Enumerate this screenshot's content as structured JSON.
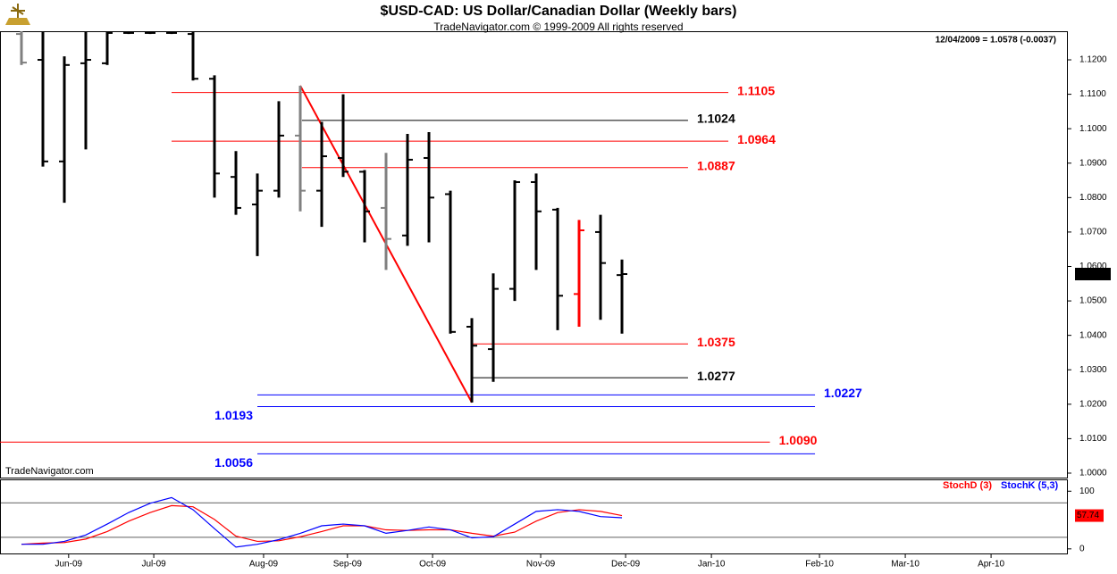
{
  "chart_data": [
    {
      "type": "ohlc",
      "title": "$USD-CAD:  US Dollar/Canadian Dollar  (Weekly bars)",
      "subtitle": "TradeNavigator.com © 1999-2009 All rights reserved",
      "note": "12/04/2009 = 1.0578 (-0.0037)",
      "watermark": "TradeNavigator.com",
      "x": [
        0,
        1,
        2,
        3,
        4,
        5,
        6,
        7,
        8,
        9,
        10,
        11,
        12,
        13,
        14,
        15,
        16,
        17,
        18,
        19,
        20,
        21,
        22,
        23,
        24,
        25,
        26,
        27,
        28
      ],
      "open": [
        1.1275,
        1.12,
        1.0905,
        1.119,
        1.119,
        1.1278,
        1.1278,
        1.1278,
        1.1275,
        1.1145,
        1.086,
        1.078,
        1.082,
        1.098,
        1.082,
        1.0915,
        1.0875,
        1.077,
        1.069,
        1.0915,
        1.081,
        1.0425,
        1.036,
        1.0535,
        1.0845,
        1.0765,
        1.052,
        1.07,
        1.0575
      ],
      "high": [
        1.129,
        1.129,
        1.121,
        1.129,
        1.129,
        1.129,
        1.129,
        1.129,
        1.129,
        1.1155,
        1.0935,
        1.087,
        1.108,
        1.1125,
        1.102,
        1.11,
        1.088,
        1.093,
        1.0985,
        1.099,
        1.082,
        1.045,
        1.058,
        1.085,
        1.087,
        1.077,
        1.0735,
        1.075,
        1.062
      ],
      "low": [
        1.1185,
        1.089,
        1.0785,
        1.094,
        1.1185,
        1.1275,
        1.1275,
        1.1275,
        1.114,
        1.08,
        1.075,
        1.063,
        1.08,
        1.076,
        1.0715,
        1.086,
        1.067,
        1.059,
        1.066,
        1.067,
        1.0405,
        1.0205,
        1.0265,
        1.05,
        1.059,
        1.0415,
        1.0425,
        1.0445,
        1.0405
      ],
      "close": [
        1.1192,
        1.0905,
        1.1185,
        1.12,
        1.1278,
        1.1278,
        1.1278,
        1.1278,
        1.1145,
        1.087,
        1.077,
        1.082,
        1.098,
        1.082,
        1.092,
        1.0875,
        1.076,
        1.068,
        1.091,
        1.08,
        1.041,
        1.037,
        1.0535,
        1.0845,
        1.076,
        1.0515,
        1.0705,
        1.061,
        1.0578
      ],
      "color": "#000000",
      "bar_colors": [
        "#808080",
        "#000000",
        "#000000",
        "#000000",
        "#000000",
        "#000000",
        "#000000",
        "#000000",
        "#000000",
        "#000000",
        "#000000",
        "#000000",
        "#000000",
        "#808080",
        "#000000",
        "#000000",
        "#000000",
        "#808080",
        "#000000",
        "#000000",
        "#000000",
        "#000000",
        "#000000",
        "#000000",
        "#000000",
        "#000000",
        "#ff0000",
        "#000000",
        "#000000"
      ],
      "xlim": [
        -1,
        48.79
      ],
      "xticks": [
        {
          "value": 2.2,
          "label": "Jun-09"
        },
        {
          "value": 6.17,
          "label": "Jul-09"
        },
        {
          "value": 11.29,
          "label": "Aug-09"
        },
        {
          "value": 15.2,
          "label": "Sep-09"
        },
        {
          "value": 19.17,
          "label": "Oct-09"
        },
        {
          "value": 24.21,
          "label": "Nov-09"
        },
        {
          "value": 28.17,
          "label": "Dec-09"
        },
        {
          "value": 32.17,
          "label": "Jan-10"
        },
        {
          "value": 37.21,
          "label": "Feb-10"
        },
        {
          "value": 41.21,
          "label": "Mar-10"
        },
        {
          "value": 45.21,
          "label": "Apr-10"
        }
      ],
      "ylim": [
        0.9987,
        1.1283
      ],
      "yticks": [
        {
          "value": 1.0,
          "label": "1.0000"
        },
        {
          "value": 1.01,
          "label": "1.0100"
        },
        {
          "value": 1.02,
          "label": "1.0200"
        },
        {
          "value": 1.03,
          "label": "1.0300"
        },
        {
          "value": 1.04,
          "label": "1.0400"
        },
        {
          "value": 1.05,
          "label": "1.0500"
        },
        {
          "value": 1.06,
          "label": "1.0600"
        },
        {
          "value": 1.07,
          "label": "1.0700"
        },
        {
          "value": 1.08,
          "label": "1.0800"
        },
        {
          "value": 1.09,
          "label": "1.0900"
        },
        {
          "value": 1.1,
          "label": "1.1000"
        },
        {
          "value": 1.11,
          "label": "1.1100"
        },
        {
          "value": 1.12,
          "label": "1.1200"
        }
      ],
      "levels": [
        {
          "value": 1.1105,
          "label": "1.1105",
          "color": "#ff0000",
          "from": 7,
          "to": 32.96
        },
        {
          "value": 1.1024,
          "label": "1.1024",
          "color": "#000000",
          "from": 13.08,
          "to": 31.08
        },
        {
          "value": 1.0964,
          "label": "1.0964",
          "color": "#ff0000",
          "from": 7,
          "to": 32.96
        },
        {
          "value": 1.0887,
          "label": "1.0887",
          "color": "#ff0000",
          "from": 13.08,
          "to": 31.08
        },
        {
          "value": 1.0375,
          "label": "1.0375",
          "color": "#ff0000",
          "from": 21,
          "to": 31.08
        },
        {
          "value": 1.0277,
          "label": "1.0277",
          "color": "#000000",
          "from": 21,
          "to": 31.08
        },
        {
          "value": 1.0227,
          "label": "1.0227",
          "color": "#0000ff",
          "from": 11,
          "to": 37
        },
        {
          "value": 1.0193,
          "label": "1.0193",
          "color": "#0000ff",
          "from": 11,
          "to": 37
        },
        {
          "value": 1.009,
          "label": "1.0090",
          "color": "#ff0000",
          "from": -1,
          "to": 34.9
        },
        {
          "value": 1.0056,
          "label": "1.0056",
          "color": "#0000ff",
          "from": 11,
          "to": 37
        }
      ],
      "trendline": {
        "from": [
          13,
          1.1125
        ],
        "to": [
          21,
          1.0205
        ],
        "color": "#ff0000"
      }
    },
    {
      "type": "line",
      "x": [
        0,
        1,
        2,
        3,
        4,
        5,
        6,
        7,
        8,
        9,
        10,
        11,
        12,
        13,
        14,
        15,
        16,
        17,
        18,
        19,
        20,
        21,
        22,
        23,
        24,
        25,
        26,
        27,
        28
      ],
      "series": [
        {
          "name": "StochD (3)",
          "color": "#ff0000",
          "values": [
            8,
            10,
            11,
            17,
            30,
            48,
            63,
            75,
            73,
            51,
            22,
            13,
            14,
            21,
            30,
            40,
            40,
            33,
            32,
            33,
            33,
            27,
            22,
            29,
            48,
            63,
            68,
            65,
            57.74
          ]
        },
        {
          "name": "StochK (5,3)",
          "color": "#0000ff",
          "values": [
            8,
            8,
            13,
            24,
            43,
            63,
            79,
            89,
            68,
            35,
            3,
            8,
            16,
            27,
            40,
            43,
            40,
            27,
            32,
            38,
            33,
            19,
            21,
            43,
            65,
            68,
            65,
            56,
            54
          ]
        }
      ],
      "xlim": [
        -1,
        48.79
      ],
      "ylim": [
        -8,
        119
      ],
      "yticks": [
        0,
        100
      ],
      "levels": [
        20,
        80
      ]
    }
  ]
}
